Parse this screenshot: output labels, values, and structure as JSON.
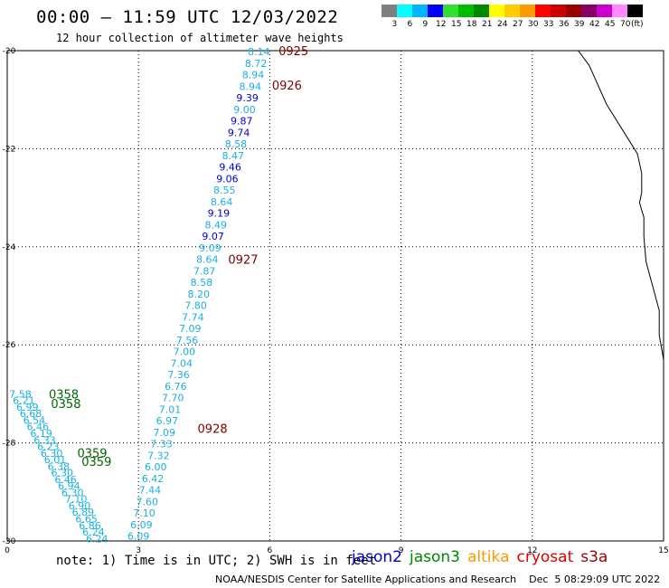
{
  "header": {
    "title": "00:00 – 11:59 UTC 12/03/2022",
    "subtitle": "12 hour collection of altimeter wave heights"
  },
  "colorbar": {
    "colors": [
      "#7f7f7f",
      "#00ffff",
      "#00b4ff",
      "#0000ff",
      "#33dd33",
      "#00bb00",
      "#008800",
      "#ffff00",
      "#ffcc00",
      "#ff9900",
      "#ff0000",
      "#cc0000",
      "#990000",
      "#880066",
      "#cc00cc",
      "#ff88ff",
      "#000000"
    ],
    "labels": [
      "3",
      "6",
      "9",
      "12",
      "15",
      "18",
      "21",
      "24",
      "27",
      "30",
      "33",
      "36",
      "39",
      "42",
      "45",
      "70",
      "(ft)"
    ]
  },
  "map": {
    "x_ticks": [
      "0",
      "3",
      "6",
      "9",
      "12",
      "15"
    ],
    "y_ticks": [
      "-20",
      "-22",
      "-24",
      "-26",
      "-28",
      "-30"
    ],
    "xlim": [
      0,
      15
    ],
    "ylim": [
      -30,
      -20
    ]
  },
  "passes": [
    {
      "sat": "cryosat",
      "color": "#1ab0e0",
      "values": [
        "8.14",
        "8.72",
        "8.94",
        "8.94",
        "9.39",
        "9.00",
        "9.87",
        "9.74",
        "8.58",
        "8.47",
        "9.46",
        "9.06",
        "8.55",
        "8.64",
        "9.19",
        "8.49",
        "9.07",
        "9.09",
        "8.64",
        "7.87",
        "8.58",
        "8.20",
        "7.80",
        "7.74",
        "7.09",
        "7.56",
        "7.00",
        "7.04",
        "7.36",
        "6.76",
        "7.70",
        "7.01",
        "6.97",
        "7.09",
        "7.33",
        "7.32",
        "6.00",
        "6.42",
        "7.44",
        "7.60",
        "7.10",
        "6.09",
        "6.09"
      ],
      "colors": [
        "#1ab0e0",
        "#1ab0e0",
        "#1ab0e0",
        "#1ab0e0",
        "#0000cc",
        "#1ab0e0",
        "#0000cc",
        "#0000cc",
        "#1ab0e0",
        "#1ab0e0",
        "#0000cc",
        "#0000cc",
        "#1ab0e0",
        "#1ab0e0",
        "#0000cc",
        "#1ab0e0",
        "#0000cc",
        "#1ab0e0",
        "#1ab0e0",
        "#1ab0e0",
        "#1ab0e0",
        "#1ab0e0",
        "#1ab0e0",
        "#1ab0e0",
        "#1ab0e0",
        "#1ab0e0",
        "#1ab0e0",
        "#1ab0e0",
        "#1ab0e0",
        "#1ab0e0",
        "#1ab0e0",
        "#1ab0e0",
        "#1ab0e0",
        "#1ab0e0",
        "#1ab0e0",
        "#1ab0e0",
        "#1ab0e0",
        "#1ab0e0",
        "#1ab0e0",
        "#1ab0e0",
        "#1ab0e0",
        "#1ab0e0",
        "#1ab0e0"
      ],
      "lon_start": 5.75,
      "lat_start": -20.02,
      "lon_end": 3.0,
      "lat_end": -29.9,
      "time_labels": [
        {
          "text": "0925",
          "lon": 6.2,
          "lat": -20.0
        },
        {
          "text": "0926",
          "lon": 6.05,
          "lat": -20.7
        },
        {
          "text": "0927",
          "lon": 5.05,
          "lat": -24.25
        },
        {
          "text": "0928",
          "lon": 4.35,
          "lat": -27.7
        }
      ],
      "time_color": "#800000"
    },
    {
      "sat": "jason3",
      "color": "#1ab0e0",
      "values": [
        "7.58",
        "6.21",
        "6.99",
        "6.68",
        "6.54",
        "6.46",
        "6.19",
        "6.33",
        "6.23",
        "6.30",
        "6.01",
        "6.38",
        "6.30",
        "6.46",
        "6.94",
        "6.30",
        "7.10",
        "6.90",
        "6.89",
        "6.65",
        "6.86",
        "6.24",
        "6.24"
      ],
      "lon_start": 0.3,
      "lat_start": -27.0,
      "lon_end": 2.05,
      "lat_end": -29.95,
      "time_labels": [
        {
          "text": "0358",
          "lon": 0.95,
          "lat": -27.0
        },
        {
          "text": "0358",
          "lon": 1.0,
          "lat": -27.2
        },
        {
          "text": "0359",
          "lon": 1.6,
          "lat": -28.2
        },
        {
          "text": "0359",
          "lon": 1.7,
          "lat": -28.38
        }
      ],
      "time_color": "#006600"
    }
  ],
  "coast_lonlat": [
    [
      13.05,
      -20.0
    ],
    [
      13.3,
      -20.3
    ],
    [
      13.5,
      -20.7
    ],
    [
      13.7,
      -21.1
    ],
    [
      14.05,
      -21.6
    ],
    [
      14.4,
      -22.1
    ],
    [
      14.5,
      -22.5
    ],
    [
      14.5,
      -22.9
    ],
    [
      14.45,
      -23.1
    ],
    [
      14.55,
      -23.4
    ],
    [
      14.55,
      -23.8
    ],
    [
      14.6,
      -24.3
    ],
    [
      14.75,
      -24.8
    ],
    [
      14.9,
      -25.3
    ],
    [
      14.9,
      -25.8
    ],
    [
      15.0,
      -26.3
    ]
  ],
  "footer": {
    "note": "note: 1) Time is in UTC; 2) SWH is in feet",
    "legend": [
      {
        "name": "jason2",
        "color": "#0000cc"
      },
      {
        "name": "jason3",
        "color": "#008800"
      },
      {
        "name": "altika",
        "color": "#ff9900"
      },
      {
        "name": "cryosat",
        "color": "#dd0000"
      },
      {
        "name": "s3a",
        "color": "#990000"
      }
    ],
    "credit": "NOAA/NESDIS Center for Satellite Applications and Research    Dec  5 08:29:09 UTC 2022"
  }
}
